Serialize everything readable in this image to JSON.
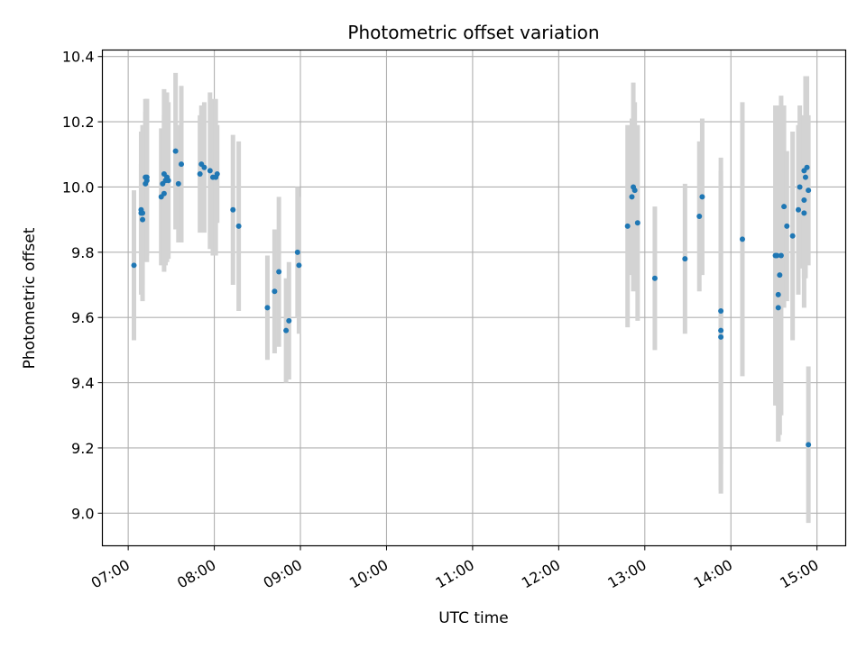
{
  "chart_data": {
    "type": "scatter",
    "title": "Photometric offset variation",
    "xlabel": "UTC time",
    "ylabel": "Photometric offset",
    "xlim": [
      "06:42",
      "15:20"
    ],
    "ylim": [
      8.9,
      10.42
    ],
    "grid": true,
    "x_ticks": [
      "07:00",
      "08:00",
      "09:00",
      "10:00",
      "11:00",
      "12:00",
      "13:00",
      "14:00",
      "15:00"
    ],
    "y_ticks": [
      "9.0",
      "9.2",
      "9.4",
      "9.6",
      "9.8",
      "10.0",
      "10.2",
      "10.4"
    ],
    "colors": {
      "points": "#1f77b4",
      "errorbars": "#d3d3d3",
      "grid": "#b0b0b0"
    },
    "series": [
      {
        "x": [
          "07:04",
          "07:09",
          "07:09",
          "07:10",
          "07:10",
          "07:12",
          "07:12",
          "07:13",
          "07:13",
          "07:23",
          "07:24",
          "07:25",
          "07:25",
          "07:26",
          "07:27",
          "07:28",
          "07:33",
          "07:35",
          "07:37",
          "07:50",
          "07:51",
          "07:53",
          "07:57",
          "07:59",
          "08:01",
          "08:02",
          "08:13",
          "08:17",
          "08:37",
          "08:42",
          "08:45",
          "08:50",
          "08:52",
          "08:58",
          "08:59",
          "12:48",
          "12:51",
          "12:52",
          "12:53",
          "12:55",
          "13:07",
          "13:28",
          "13:38",
          "13:40",
          "13:53",
          "13:53",
          "13:53",
          "14:08",
          "14:31",
          "14:32",
          "14:33",
          "14:33",
          "14:34",
          "14:35",
          "14:37",
          "14:39",
          "14:43",
          "14:47",
          "14:48",
          "14:51",
          "14:51",
          "14:51",
          "14:52",
          "14:53",
          "14:54",
          "14:54"
        ],
        "y": [
          9.76,
          9.93,
          9.92,
          9.9,
          9.92,
          10.03,
          10.01,
          10.03,
          10.02,
          9.97,
          10.01,
          10.04,
          9.98,
          10.02,
          10.03,
          10.02,
          10.11,
          10.01,
          10.07,
          10.04,
          10.07,
          10.06,
          10.05,
          10.03,
          10.03,
          10.04,
          9.93,
          9.88,
          9.63,
          9.68,
          9.74,
          9.56,
          9.59,
          9.8,
          9.76,
          9.88,
          9.97,
          10.0,
          9.99,
          9.89,
          9.72,
          9.78,
          9.91,
          9.97,
          9.62,
          9.56,
          9.54,
          9.84,
          9.79,
          9.79,
          9.63,
          9.67,
          9.73,
          9.79,
          9.94,
          9.88,
          9.85,
          9.93,
          10.0,
          10.05,
          9.92,
          9.96,
          10.03,
          10.06,
          9.99,
          9.21
        ],
        "err": [
          0.23,
          0.14,
          0.25,
          0.2,
          0.27,
          0.24,
          0.22,
          0.24,
          0.25,
          0.21,
          0.13,
          0.26,
          0.24,
          0.26,
          0.26,
          0.24,
          0.24,
          0.18,
          0.24,
          0.18,
          0.18,
          0.2,
          0.24,
          0.24,
          0.24,
          0.15,
          0.23,
          0.26,
          0.16,
          0.19,
          0.23,
          0.16,
          0.18,
          0.2,
          0.21,
          0.31,
          0.24,
          0.32,
          0.27,
          0.3,
          0.22,
          0.23,
          0.23,
          0.24,
          0.47,
          0.49,
          0.48,
          0.42,
          0.46,
          0.46,
          0.41,
          0.45,
          0.49,
          0.49,
          0.31,
          0.23,
          0.32,
          0.26,
          0.25,
          0.17,
          0.29,
          0.24,
          0.31,
          0.28,
          0.23,
          0.24
        ]
      }
    ]
  }
}
